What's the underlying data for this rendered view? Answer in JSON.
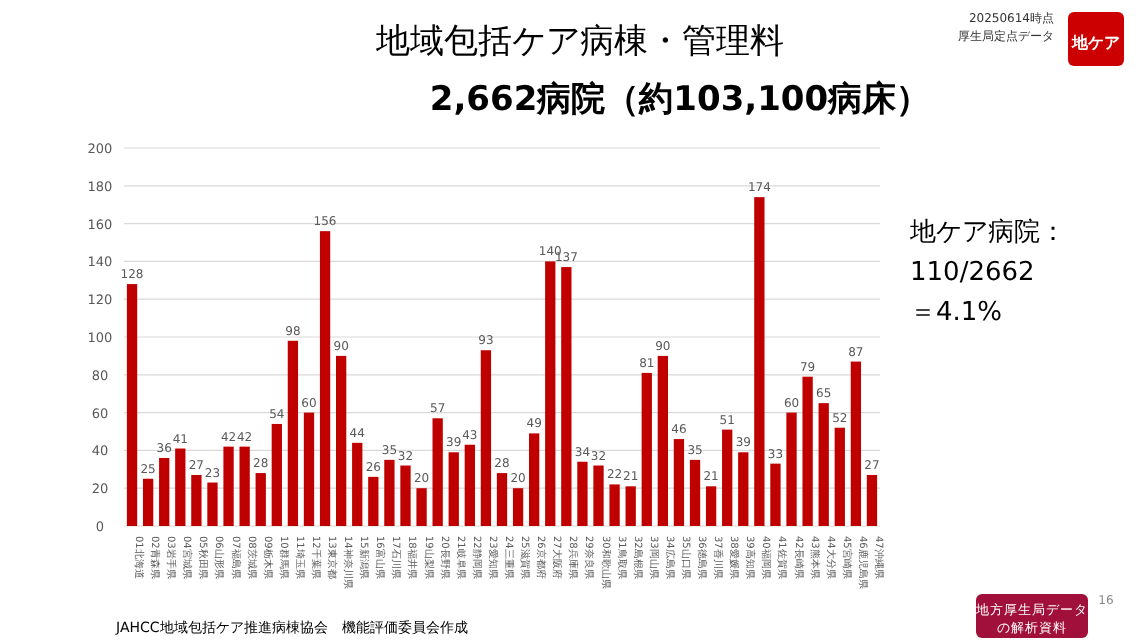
{
  "chart_data": {
    "type": "bar",
    "title": "地域包括ケア病棟・管理料",
    "subtitle": "2,662病院（約103,100病床）",
    "categories": [
      "01北海道",
      "02青森県",
      "03岩手県",
      "04宮城県",
      "05秋田県",
      "06山形県",
      "07福島県",
      "08茨城県",
      "09栃木県",
      "10群馬県",
      "11埼玉県",
      "12千葉県",
      "13東京都",
      "14神奈川県",
      "15新潟県",
      "16富山県",
      "17石川県",
      "18福井県",
      "19山梨県",
      "20長野県",
      "21岐阜県",
      "22静岡県",
      "23愛知県",
      "24三重県",
      "25滋賀県",
      "26京都府",
      "27大阪府",
      "28兵庫県",
      "29奈良県",
      "30和歌山県",
      "31鳥取県",
      "32島根県",
      "33岡山県",
      "34広島県",
      "35山口県",
      "36徳島県",
      "37香川県",
      "38愛媛県",
      "39高知県",
      "40福岡県",
      "41佐賀県",
      "42長崎県",
      "43熊本県",
      "44大分県",
      "45宮崎県",
      "46鹿児島県",
      "47沖縄県"
    ],
    "values": [
      128,
      25,
      36,
      41,
      27,
      23,
      42,
      42,
      28,
      54,
      98,
      60,
      156,
      90,
      44,
      26,
      35,
      32,
      20,
      57,
      39,
      43,
      93,
      28,
      20,
      49,
      140,
      137,
      34,
      32,
      22,
      21,
      81,
      90,
      46,
      35,
      21,
      51,
      39,
      174,
      33,
      60,
      79,
      65,
      52,
      87,
      27
    ],
    "color": "#c00000",
    "ylim": [
      0,
      200
    ],
    "yticks": [
      0,
      20,
      40,
      60,
      80,
      100,
      120,
      140,
      160,
      180,
      200
    ],
    "grid": "y",
    "data_labels": true,
    "annotations": [
      "20250614時点",
      "厚生局定点データ",
      "地ケア",
      "地ケア病院：",
      "110/2662",
      "＝4.1%",
      "JAHCC地域包括ケア推進病棟協会　機能評価委員会作成",
      "地方厚生局データ",
      "の解析資料",
      "16"
    ]
  }
}
